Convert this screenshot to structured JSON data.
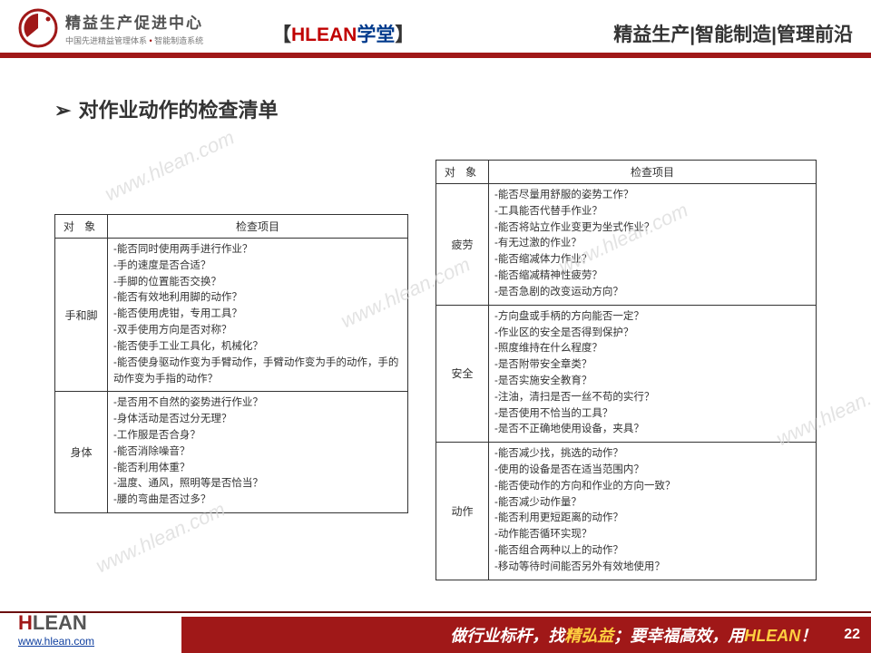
{
  "header": {
    "logo_title": "精益生产促进中心",
    "logo_sub_left": "中国先进精益管理体系",
    "logo_sub_right": "智能制造系统",
    "center_bracket_l": "【",
    "center_red": "HLEAN",
    "center_blue": "学堂",
    "center_bracket_r": "】",
    "right_title": "精益生产|智能制造|管理前沿"
  },
  "heading": {
    "arrow": "➢",
    "text": "对作业动作的检查清单"
  },
  "table_headers": {
    "obj": "对 象",
    "items": "检查项目"
  },
  "left_table": [
    {
      "obj": "手和脚",
      "items": "-能否同时使用两手进行作业？\n-手的速度是否合适？\n-手脚的位置能否交换？\n-能否有效地利用脚的动作？\n-能否使用虎钳，专用工具？\n-双手使用方向是否对称？\n-能否使手工业工具化，机械化？\n-能否使身驱动作变为手臂动作，手臂动作变为手的动作，手的动作变为手指的动作？"
    },
    {
      "obj": "身体",
      "items": "-是否用不自然的姿势进行作业？\n-身体活动是否过分无理？\n-工作服是否合身？\n-能否消除噪音？\n-能否利用体重？\n-温度、通风，照明等是否恰当？\n-腰的弯曲是否过多？"
    }
  ],
  "right_table": [
    {
      "obj": "疲劳",
      "items": "-能否尽量用舒服的姿势工作？\n-工具能否代替手作业？\n-能否将站立作业变更为坐式作业？\n-有无过激的作业？\n-能否缩减体力作业？\n-能否缩减精神性疲劳？\n-是否急剧的改变运动方向？"
    },
    {
      "obj": "安全",
      "items": "-方向盘或手柄的方向能否一定？\n-作业区的安全是否得到保护？\n-照度维持在什么程度？\n-是否附带安全章类？\n-是否实施安全教育？\n-注油，清扫是否一丝不苟的实行？\n-是否使用不恰当的工具？\n-是否不正确地使用设备，夹具？"
    },
    {
      "obj": "动作",
      "items": "-能否减少找，挑选的动作？\n-使用的设备是否在适当范围内？\n-能否使动作的方向和作业的方向一致？\n-能否减少动作量？\n-能否利用更短距离的动作？\n-动作能否循环实现？\n-能否组合两种以上的动作？\n-移动等待时间能否另外有效地使用？"
    }
  ],
  "watermark_text": "www.hlean.com",
  "footer": {
    "logo_h": "H",
    "logo_lean": "LEAN",
    "url": "www.hlean.com",
    "slogan_p1": "做行业标杆，找",
    "slogan_y1": "精弘益",
    "slogan_p2": "；要幸福高效，用",
    "slogan_y2": "HLEAN",
    "slogan_end": "！",
    "page": "22"
  },
  "colors": {
    "red_bar": "#a01818",
    "accent_red": "#c00000",
    "accent_blue": "#003a8c"
  }
}
